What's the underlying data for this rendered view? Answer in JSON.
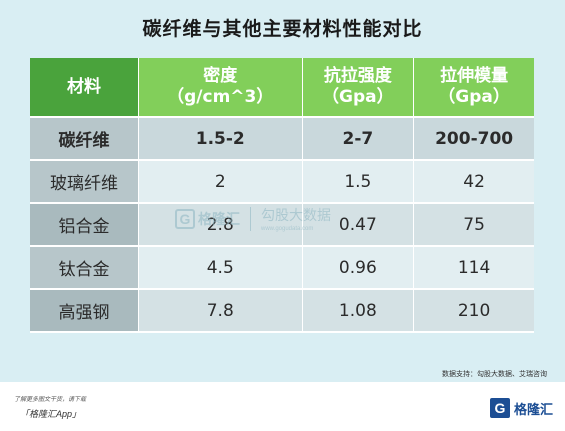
{
  "title": "碳纤维与其他主要材料性能对比",
  "table": {
    "headers": [
      {
        "line1": "材料",
        "line2": ""
      },
      {
        "line1": "密度",
        "line2": "（g/cm^3）"
      },
      {
        "line1": "抗拉强度",
        "line2": "（Gpa）"
      },
      {
        "line1": "拉伸模量",
        "line2": "（Gpa）"
      }
    ],
    "rows": [
      [
        "碳纤维",
        "1.5-2",
        "2-7",
        "200-700"
      ],
      [
        "玻璃纤维",
        "2",
        "1.5",
        "42"
      ],
      [
        "铝合金",
        "2.8",
        "0.47",
        "75"
      ],
      [
        "钛合金",
        "4.5",
        "0.96",
        "114"
      ],
      [
        "高强钢",
        "7.8",
        "1.08",
        "210"
      ]
    ]
  },
  "watermark": {
    "logo_letter": "G",
    "name": "格隆汇",
    "big": "勾股大数据",
    "url": "www.gogudata.com"
  },
  "source": "数据支持：勾股大数据、艾瑞咨询",
  "footer": {
    "line1": "了解更多图文干货，请下载",
    "line2": "「格隆汇App」",
    "brand_letter": "G",
    "brand_name": "格隆汇"
  },
  "colors": {
    "header_first": "#4aa33c",
    "header": "#82cf5a",
    "background": "#d9eef3"
  }
}
